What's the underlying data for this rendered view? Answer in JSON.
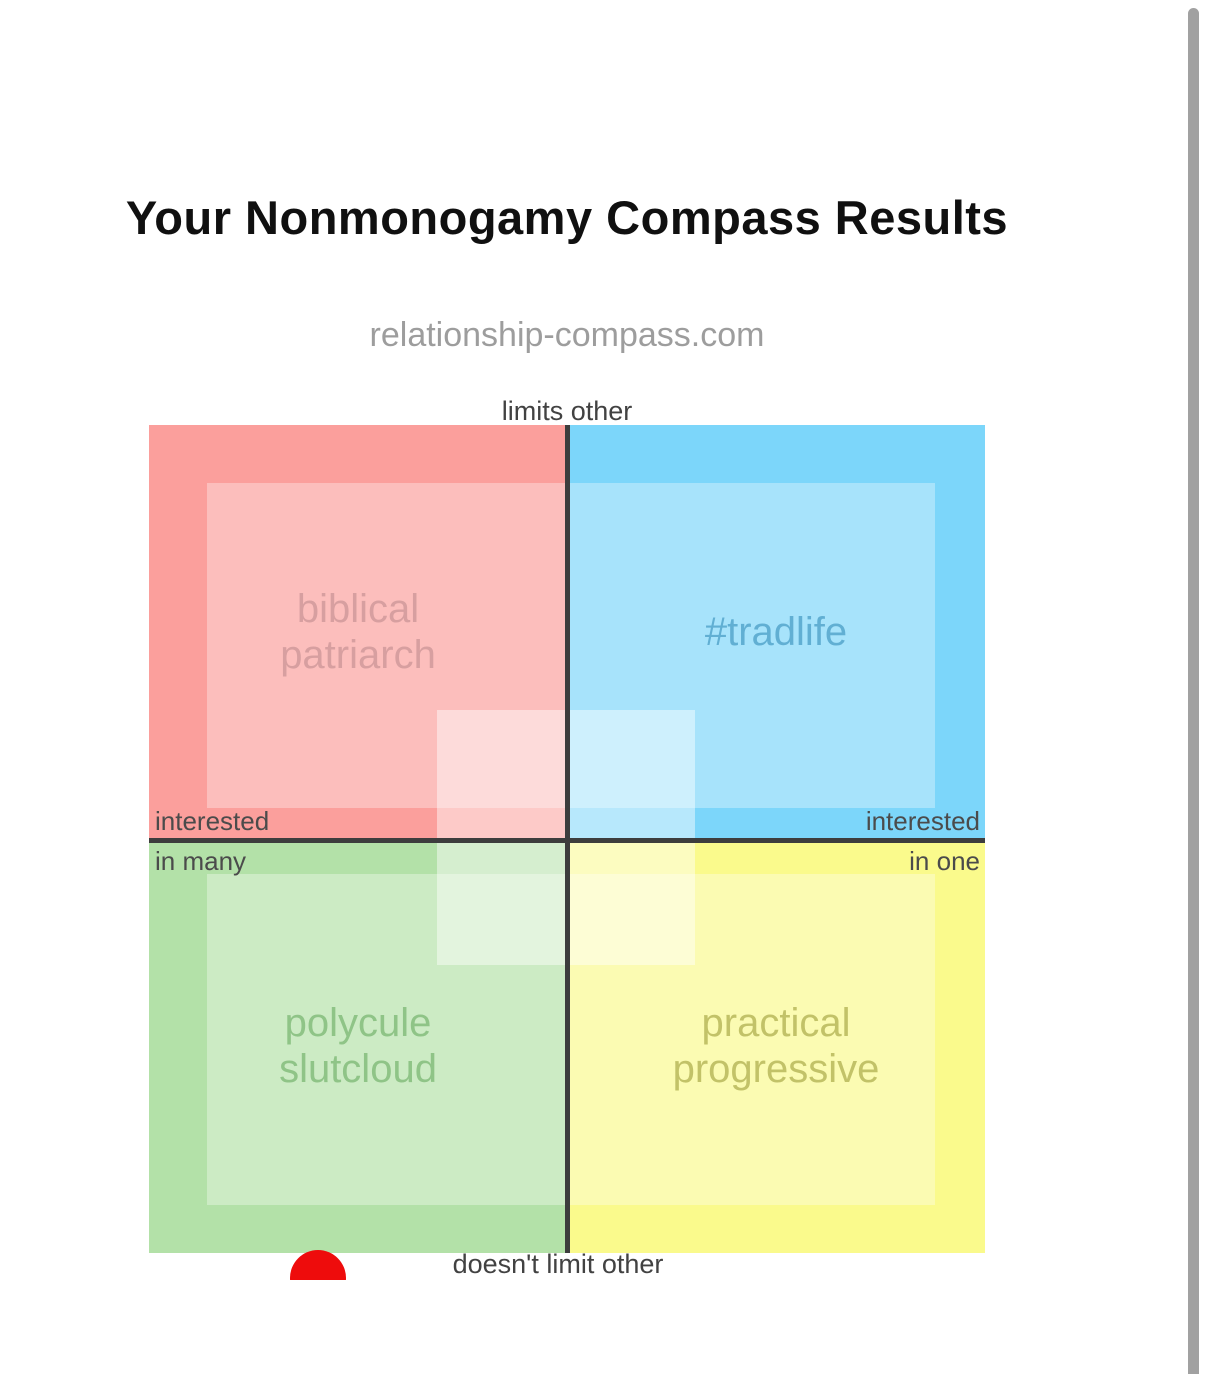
{
  "page": {
    "title": "Your Nonmonogamy Compass Results",
    "subtitle": "relationship-compass.com"
  },
  "chart_data": {
    "type": "scatter",
    "title": "Nonmonogamy Compass quadrant chart",
    "axis_labels": {
      "top": "limits other",
      "bottom": "doesn't limit other",
      "left_line1": "interested",
      "left_line2": "in many",
      "right_line1": "interested",
      "right_line2": "in one"
    },
    "x_axis_range": [
      "interested in many",
      "interested in one"
    ],
    "y_axis_range": [
      "doesn't limit other",
      "limits other"
    ],
    "grid": false,
    "legend": false,
    "quadrants": [
      {
        "position": "top-left",
        "line1": "biblical",
        "line2": "patriarch",
        "color": "#FB9F9C"
      },
      {
        "position": "top-right",
        "line1": "#tradlife",
        "line2": "",
        "color": "#7CD6FA"
      },
      {
        "position": "bottom-left",
        "line1": "polycule",
        "line2": "slutcloud",
        "color": "#B3E1A8"
      },
      {
        "position": "bottom-right",
        "line1": "practical",
        "line2": "progressive",
        "color": "#FAFA8C"
      }
    ],
    "result_point": {
      "color": "#EE0C0C",
      "x_fraction_from_left": 0.2,
      "y_fraction_from_top": 1.03,
      "quadrant": "bottom-left",
      "note": "marker sits at extreme 'doesn't limit other' edge, left of center; lower half clipped by image boundary"
    },
    "style": {
      "quadrant_inner_shade": "rgba(255,255,255,0.33)",
      "center_shade": "rgba(255,255,255,0.45)",
      "axis_color": "#3d3d3d"
    }
  },
  "scrollbar": {
    "color": "#a1a1a1"
  }
}
